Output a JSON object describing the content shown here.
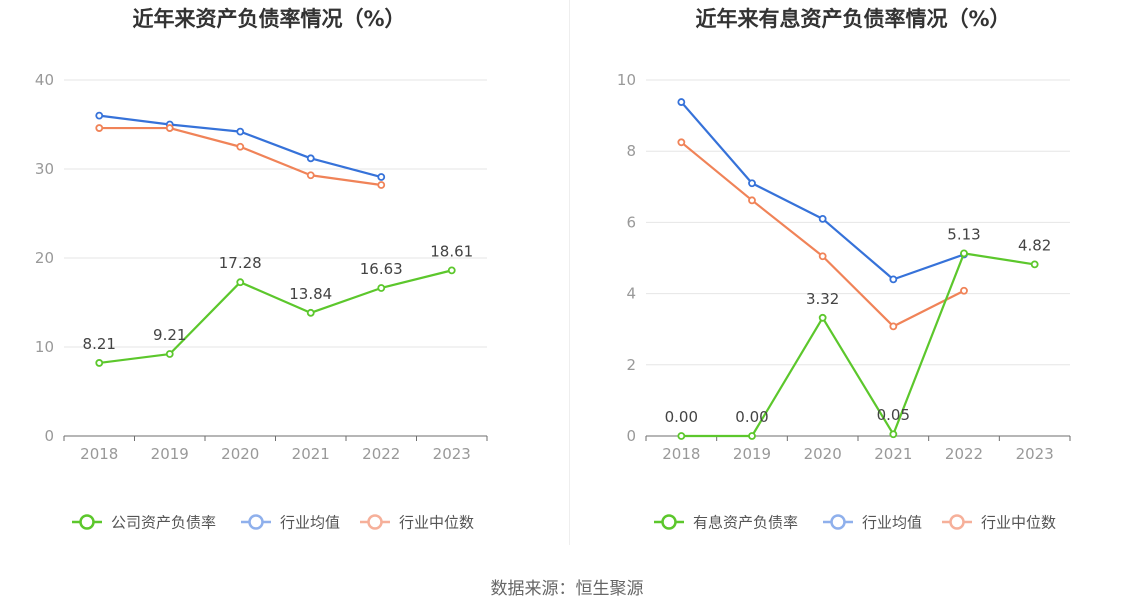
{
  "source_text": "数据来源：恒生聚源",
  "chart_data": [
    {
      "type": "line",
      "title": "近年来资产负债率情况（%）",
      "categories": [
        "2018",
        "2019",
        "2020",
        "2021",
        "2022",
        "2023"
      ],
      "ylim": [
        0,
        40
      ],
      "yticks": [
        "0",
        "10",
        "20",
        "30",
        "40"
      ],
      "grid": true,
      "legend_position": "bottom",
      "series": [
        {
          "name": "公司资产负债率",
          "color": "#5cc72c",
          "values": [
            8.21,
            9.21,
            17.28,
            13.84,
            16.63,
            18.61
          ],
          "labels": [
            "8.21",
            "9.21",
            "17.28",
            "13.84",
            "16.63",
            "18.61"
          ]
        },
        {
          "name": "行业均值",
          "color": "#3672d9",
          "values": [
            36.0,
            35.0,
            34.2,
            31.2,
            29.1,
            null
          ]
        },
        {
          "name": "行业中位数",
          "color": "#f08358",
          "values": [
            34.6,
            34.6,
            32.5,
            29.3,
            28.2,
            null
          ]
        }
      ]
    },
    {
      "type": "line",
      "title": "近年来有息资产负债率情况（%）",
      "categories": [
        "2018",
        "2019",
        "2020",
        "2021",
        "2022",
        "2023"
      ],
      "ylim": [
        0,
        10
      ],
      "yticks": [
        "0",
        "2",
        "4",
        "6",
        "8",
        "10"
      ],
      "grid": true,
      "legend_position": "bottom",
      "series": [
        {
          "name": "有息资产负债率",
          "color": "#5cc72c",
          "values": [
            0.0,
            0.0,
            3.32,
            0.05,
            5.13,
            4.82
          ],
          "labels": [
            "0.00",
            "0.00",
            "3.32",
            "0.05",
            "5.13",
            "4.82"
          ]
        },
        {
          "name": "行业均值",
          "color": "#3672d9",
          "values": [
            9.38,
            7.1,
            6.1,
            4.4,
            5.1,
            null
          ]
        },
        {
          "name": "行业中位数",
          "color": "#f08358",
          "values": [
            8.25,
            6.62,
            5.05,
            3.08,
            4.08,
            null
          ]
        }
      ]
    }
  ]
}
